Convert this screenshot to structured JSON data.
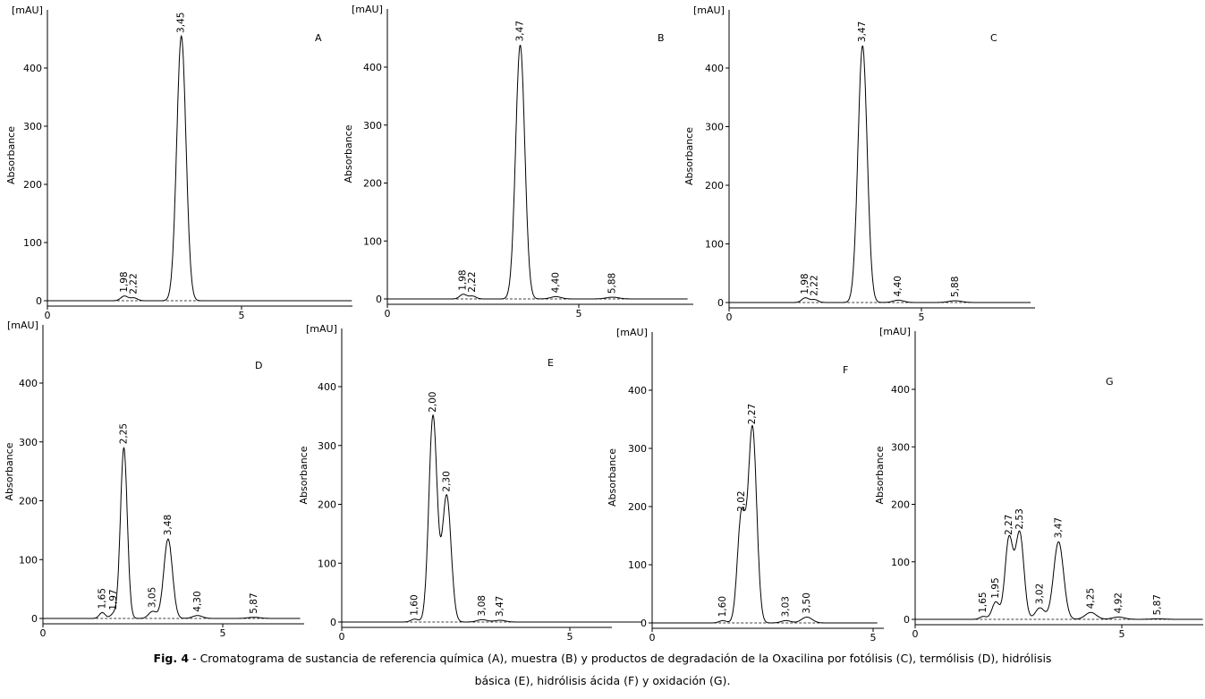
{
  "chart_data": [
    {
      "type": "line",
      "panel_label": "A",
      "unit_label": "[mAU]",
      "ylabel": "Absorbance",
      "xlim": [
        0,
        8
      ],
      "ylim": [
        0,
        450
      ],
      "yticks": [
        0,
        100,
        200,
        300,
        400
      ],
      "xticks": [
        0,
        5
      ],
      "peaks": [
        {
          "label": "1,98",
          "rt": 1.98,
          "height": 8
        },
        {
          "label": "2,22",
          "rt": 2.22,
          "height": 5
        },
        {
          "label": "3,45",
          "rt": 3.45,
          "height": 455
        }
      ]
    },
    {
      "type": "line",
      "panel_label": "B",
      "unit_label": "[mAU]",
      "ylabel": "Absorbance",
      "xlim": [
        0,
        8
      ],
      "ylim": [
        0,
        450
      ],
      "yticks": [
        0,
        100,
        200,
        300,
        400
      ],
      "xticks": [
        0,
        5
      ],
      "peaks": [
        {
          "label": "1,98",
          "rt": 1.98,
          "height": 8
        },
        {
          "label": "2,22",
          "rt": 2.22,
          "height": 5
        },
        {
          "label": "3,47",
          "rt": 3.47,
          "height": 438
        },
        {
          "label": "4,40",
          "rt": 4.4,
          "height": 4
        },
        {
          "label": "5,88",
          "rt": 5.88,
          "height": 3
        }
      ]
    },
    {
      "type": "line",
      "panel_label": "C",
      "unit_label": "[mAU]",
      "ylabel": "Absorbance",
      "xlim": [
        0,
        8
      ],
      "ylim": [
        0,
        450
      ],
      "yticks": [
        0,
        100,
        200,
        300,
        400
      ],
      "xticks": [
        0,
        5
      ],
      "peaks": [
        {
          "label": "1,98",
          "rt": 1.98,
          "height": 8
        },
        {
          "label": "2,22",
          "rt": 2.22,
          "height": 5
        },
        {
          "label": "3,47",
          "rt": 3.47,
          "height": 438
        },
        {
          "label": "4,40",
          "rt": 4.4,
          "height": 4
        },
        {
          "label": "5,88",
          "rt": 5.88,
          "height": 3
        }
      ]
    },
    {
      "type": "line",
      "panel_label": "D",
      "unit_label": "[mAU]",
      "ylabel": "Absorbance",
      "xlim": [
        0,
        7.3
      ],
      "ylim": [
        0,
        450
      ],
      "yticks": [
        0,
        100,
        200,
        300,
        400
      ],
      "xticks": [
        0,
        5
      ],
      "peaks": [
        {
          "label": "1,65",
          "rt": 1.65,
          "height": 10
        },
        {
          "label": "1,97",
          "rt": 1.97,
          "height": 8
        },
        {
          "label": "2,25",
          "rt": 2.25,
          "height": 290
        },
        {
          "label": "3,05",
          "rt": 3.05,
          "height": 12
        },
        {
          "label": "3,48",
          "rt": 3.48,
          "height": 135
        },
        {
          "label": "4,30",
          "rt": 4.3,
          "height": 5
        },
        {
          "label": "5,87",
          "rt": 5.87,
          "height": 2
        }
      ]
    },
    {
      "type": "line",
      "panel_label": "E",
      "unit_label": "[mAU]",
      "ylabel": "Absorbance",
      "xlim": [
        0,
        6.7
      ],
      "ylim": [
        0,
        450
      ],
      "yticks": [
        0,
        100,
        200,
        300,
        400
      ],
      "xticks": [
        0,
        5
      ],
      "peaks": [
        {
          "label": "1,60",
          "rt": 1.6,
          "height": 5
        },
        {
          "label": "2,00",
          "rt": 2.0,
          "height": 350
        },
        {
          "label": "2,30",
          "rt": 2.3,
          "height": 215
        },
        {
          "label": "3,08",
          "rt": 3.08,
          "height": 4
        },
        {
          "label": "3,47",
          "rt": 3.47,
          "height": 3
        }
      ]
    },
    {
      "type": "line",
      "panel_label": "F",
      "unit_label": "[mAU]",
      "ylabel": "Absorbance",
      "xlim": [
        0,
        5.2
      ],
      "ylim": [
        0,
        450
      ],
      "yticks": [
        0,
        100,
        200,
        300,
        400
      ],
      "xticks": [
        0,
        5
      ],
      "peaks": [
        {
          "label": "1,60",
          "rt": 1.6,
          "height": 4
        },
        {
          "label": "2,02",
          "rt": 2.02,
          "height": 185
        },
        {
          "label": "2,27",
          "rt": 2.27,
          "height": 335
        },
        {
          "label": "3,03",
          "rt": 3.03,
          "height": 4
        },
        {
          "label": "3,50",
          "rt": 3.5,
          "height": 10
        }
      ]
    },
    {
      "type": "line",
      "panel_label": "G",
      "unit_label": "[mAU]",
      "ylabel": "Absorbance",
      "xlim": [
        0,
        7.1
      ],
      "ylim": [
        0,
        450
      ],
      "yticks": [
        0,
        100,
        200,
        300,
        400
      ],
      "xticks": [
        0,
        5
      ],
      "peaks": [
        {
          "label": "1,65",
          "rt": 1.65,
          "height": 5
        },
        {
          "label": "1,95",
          "rt": 1.95,
          "height": 30
        },
        {
          "label": "2,27",
          "rt": 2.27,
          "height": 140
        },
        {
          "label": "2,53",
          "rt": 2.53,
          "height": 150
        },
        {
          "label": "3,02",
          "rt": 3.02,
          "height": 20
        },
        {
          "label": "3,47",
          "rt": 3.47,
          "height": 135
        },
        {
          "label": "4,25",
          "rt": 4.25,
          "height": 12
        },
        {
          "label": "4,92",
          "rt": 4.92,
          "height": 4
        },
        {
          "label": "5,87",
          "rt": 5.87,
          "height": 1
        }
      ]
    }
  ],
  "caption": {
    "fig_label": "Fig. 4",
    "line1": " - Cromatograma de sustancia de referencia química (A), muestra (B) y productos de degradación de la Oxacilina por fotólisis (C), termólisis (D), hidrólisis",
    "line2": "básica (E), hidrólisis ácida (F) y oxidación (G)."
  }
}
